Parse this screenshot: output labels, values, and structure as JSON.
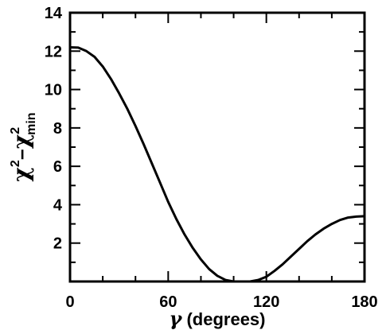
{
  "chart_data": {
    "type": "line",
    "title": "",
    "xlabel": {
      "symbol": "γ",
      "text": " (degrees)"
    },
    "ylabel": {
      "symbol": "χ",
      "sup": "2",
      "dash": "−",
      "sub": "min"
    },
    "xlim": [
      0,
      180
    ],
    "ylim": [
      0,
      14
    ],
    "xticks": [
      0,
      60,
      120,
      180
    ],
    "yticks": [
      2,
      4,
      6,
      8,
      10,
      12,
      14
    ],
    "x_minor_step": 20,
    "y_minor_step": 1,
    "grid": false,
    "line_color": "#000000",
    "series": [
      {
        "x": [
          0,
          5,
          10,
          15,
          20,
          25,
          30,
          35,
          40,
          45,
          50,
          55,
          60,
          65,
          70,
          75,
          80,
          85,
          90,
          95,
          100,
          105,
          110,
          115,
          120,
          125,
          130,
          135,
          140,
          145,
          150,
          155,
          160,
          165,
          170,
          175,
          180
        ],
        "y": [
          12.2,
          12.18,
          12.0,
          11.7,
          11.2,
          10.55,
          9.8,
          9.0,
          8.1,
          7.15,
          6.15,
          5.15,
          4.15,
          3.25,
          2.45,
          1.75,
          1.15,
          0.65,
          0.3,
          0.08,
          0.0,
          0.0,
          0.0,
          0.08,
          0.25,
          0.55,
          0.9,
          1.3,
          1.7,
          2.1,
          2.45,
          2.75,
          3.0,
          3.2,
          3.33,
          3.38,
          3.4
        ]
      }
    ]
  }
}
